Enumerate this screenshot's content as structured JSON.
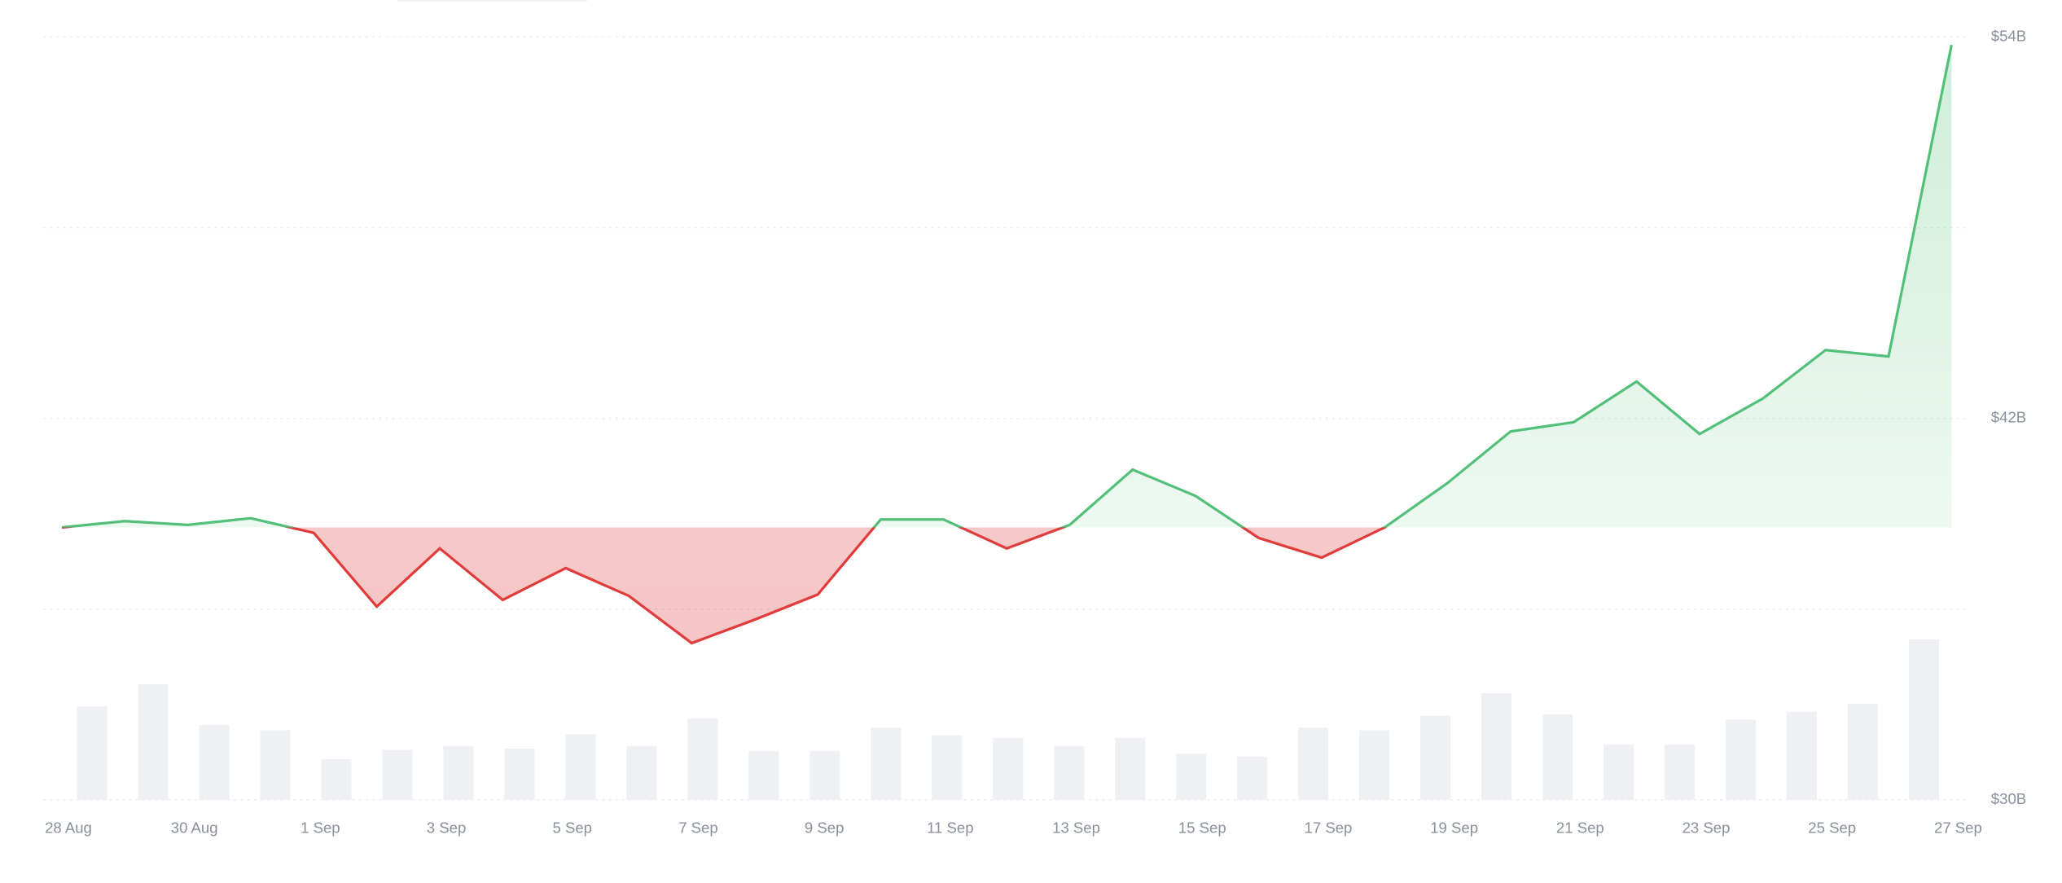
{
  "chart_data": {
    "type": "baseline-line",
    "categories": [
      "28 Aug",
      null,
      "30 Aug",
      null,
      "1 Sep",
      null,
      "3 Sep",
      null,
      "5 Sep",
      null,
      "7 Sep",
      null,
      "9 Sep",
      null,
      "11 Sep",
      null,
      "13 Sep",
      null,
      "15 Sep",
      null,
      "17 Sep",
      null,
      "19 Sep",
      null,
      "21 Sep",
      null,
      "23 Sep",
      null,
      "25 Sep",
      null,
      "27 Sep"
    ],
    "values": [
      38.57,
      38.77,
      38.65,
      38.86,
      38.4,
      36.08,
      37.91,
      36.29,
      37.29,
      36.42,
      34.93,
      35.67,
      36.46,
      38.82,
      38.82,
      37.91,
      38.65,
      40.39,
      39.56,
      38.24,
      37.62,
      38.57,
      39.97,
      41.59,
      41.88,
      43.16,
      41.51,
      42.62,
      44.15,
      43.95,
      53.75
    ],
    "volume": [
      71,
      88,
      57,
      53,
      31,
      38,
      41,
      39,
      50,
      41,
      62,
      37,
      37,
      55,
      49,
      47,
      41,
      47,
      35,
      33,
      55,
      53,
      64,
      81,
      65,
      42,
      42,
      61,
      67,
      73,
      122
    ],
    "up_color": "#53c07a",
    "down_color": "#e03c3c",
    "volume_color": "#eff0f4",
    "ylim": [
      30,
      54.25
    ],
    "yticks": [
      {
        "value": 54,
        "label": "$54B"
      },
      {
        "value": 42,
        "label": "$42B"
      },
      {
        "value": 30,
        "label": "$30B"
      }
    ],
    "ygrid": [
      54,
      48,
      42,
      36,
      30
    ],
    "grid": true
  }
}
